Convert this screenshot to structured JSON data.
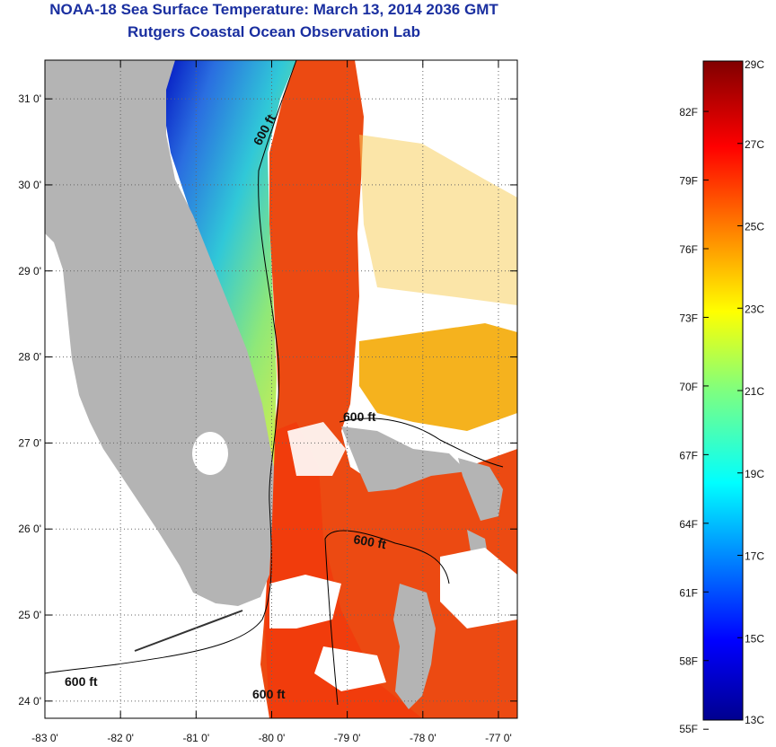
{
  "header": {
    "title": "NOAA-18 Sea Surface Temperature:  March 13, 2014 2036 GMT",
    "subtitle": "Rutgers Coastal Ocean Observation Lab"
  },
  "map": {
    "lon_ticks": [
      "-83 0'",
      "-82 0'",
      "-81 0'",
      "-80 0'",
      "-79 0'",
      "-78 0'",
      "-77 0'"
    ],
    "lon_values": [
      -83,
      -82,
      -81,
      -80,
      -79,
      -78,
      -77
    ],
    "lat_ticks": [
      "24 0'",
      "25 0'",
      "26 0'",
      "27 0'",
      "28 0'",
      "29 0'",
      "30 0'",
      "31 0'"
    ],
    "lat_values": [
      24,
      25,
      26,
      27,
      28,
      29,
      30,
      31
    ],
    "lon_range": [
      -83,
      -76.75
    ],
    "lat_range": [
      23.8,
      31.45
    ],
    "contour_labels": [
      "600 ft",
      "600 ft",
      "600 ft",
      "600 ft",
      "600 ft"
    ],
    "grid": "dotted",
    "colors": {
      "land": "#b4b4b4",
      "cloud": "#ffffff"
    }
  },
  "colorbar": {
    "celsius_labels": [
      "29C",
      "27C",
      "25C",
      "23C",
      "21C",
      "19C",
      "17C",
      "15C",
      "13C"
    ],
    "fahrenheit_labels": [
      "82F",
      "79F",
      "76F",
      "73F",
      "70F",
      "67F",
      "64F",
      "61F",
      "58F",
      "55F"
    ],
    "range_c": [
      13,
      29
    ],
    "colormap": "jet"
  }
}
